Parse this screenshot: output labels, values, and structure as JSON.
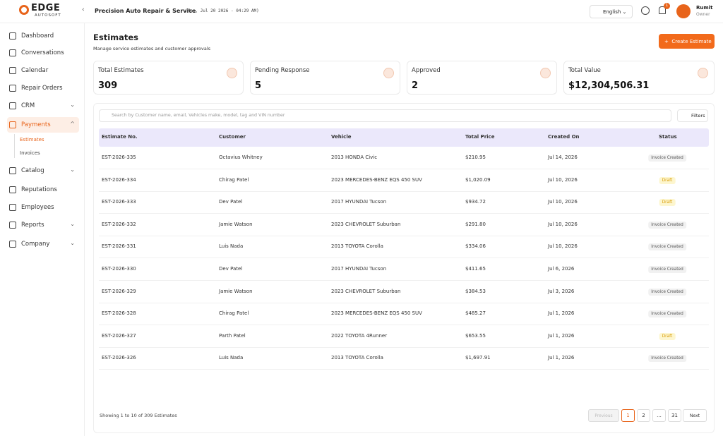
{
  "brand": {
    "name": "EDGE",
    "tagline": "AUTOSOFT"
  },
  "header": {
    "shop": "Precision Auto Repair & Service",
    "datetime": "(Mon, Jul 20 2026 - 04:29 AM)",
    "language": "English",
    "notifications": "1",
    "user": "Rumit",
    "role": "Owner"
  },
  "sidebar": {
    "items": [
      {
        "label": "Dashboard"
      },
      {
        "label": "Conversations"
      },
      {
        "label": "Calendar"
      },
      {
        "label": "Repair Orders"
      },
      {
        "label": "CRM"
      },
      {
        "label": "Payments",
        "children": [
          "Estimates",
          "Invoices"
        ]
      },
      {
        "label": "Catalog"
      },
      {
        "label": "Reputations"
      },
      {
        "label": "Employees"
      },
      {
        "label": "Reports"
      },
      {
        "label": "Company"
      }
    ]
  },
  "page": {
    "title": "Estimates",
    "subtitle": "Manage service estimates and customer approvals",
    "action": "Create Estimate"
  },
  "stats": [
    {
      "label": "Total Estimates",
      "value": "309"
    },
    {
      "label": "Pending Response",
      "value": "5"
    },
    {
      "label": "Approved",
      "value": "2"
    },
    {
      "label": "Total Value",
      "value": "$12,304,506.31"
    }
  ],
  "search": {
    "placeholder": "Search by Customer name, email, Vehicles make, model, tag and VIN number",
    "filters": "Filters"
  },
  "table": {
    "columns": [
      "Estimate No.",
      "Customer",
      "Vehicle",
      "Total Price",
      "Created On",
      "Status"
    ],
    "rows": [
      [
        "EST-2026-335",
        "Octavius Whitney",
        "2013 HONDA Civic",
        "$210.95",
        "Jul 14, 2026",
        "Invoice Created"
      ],
      [
        "EST-2026-334",
        "Chirag Patel",
        "2023 MERCEDES-BENZ EQS 450 SUV",
        "$1,020.09",
        "Jul 10, 2026",
        "Draft"
      ],
      [
        "EST-2026-333",
        "Dev Patel",
        "2017 HYUNDAI Tucson",
        "$934.72",
        "Jul 10, 2026",
        "Draft"
      ],
      [
        "EST-2026-332",
        "Jamie Watson",
        "2023 CHEVROLET Suburban",
        "$291.80",
        "Jul 10, 2026",
        "Invoice Created"
      ],
      [
        "EST-2026-331",
        "Luis Nada",
        "2013 TOYOTA Corolla",
        "$334.06",
        "Jul 10, 2026",
        "Invoice Created"
      ],
      [
        "EST-2026-330",
        "Dev Patel",
        "2017 HYUNDAI Tucson",
        "$411.65",
        "Jul 6, 2026",
        "Invoice Created"
      ],
      [
        "EST-2026-329",
        "Jamie Watson",
        "2023 CHEVROLET Suburban",
        "$384.53",
        "Jul 3, 2026",
        "Invoice Created"
      ],
      [
        "EST-2026-328",
        "Chirag Patel",
        "2023 MERCEDES-BENZ EQS 450 SUV",
        "$485.27",
        "Jul 1, 2026",
        "Invoice Created"
      ],
      [
        "EST-2026-327",
        "Parth Patel",
        "2022 TOYOTA 4Runner",
        "$653.55",
        "Jul 1, 2026",
        "Draft"
      ],
      [
        "EST-2026-326",
        "Luis Nada",
        "2013 TOYOTA Corolla",
        "$1,697.91",
        "Jul 1, 2026",
        "Invoice Created"
      ]
    ]
  },
  "footer": {
    "summary": "Showing 1 to 10 of 309 Estimates",
    "pagination": [
      "Previous",
      "1",
      "2",
      "...",
      "31",
      "Next"
    ]
  }
}
